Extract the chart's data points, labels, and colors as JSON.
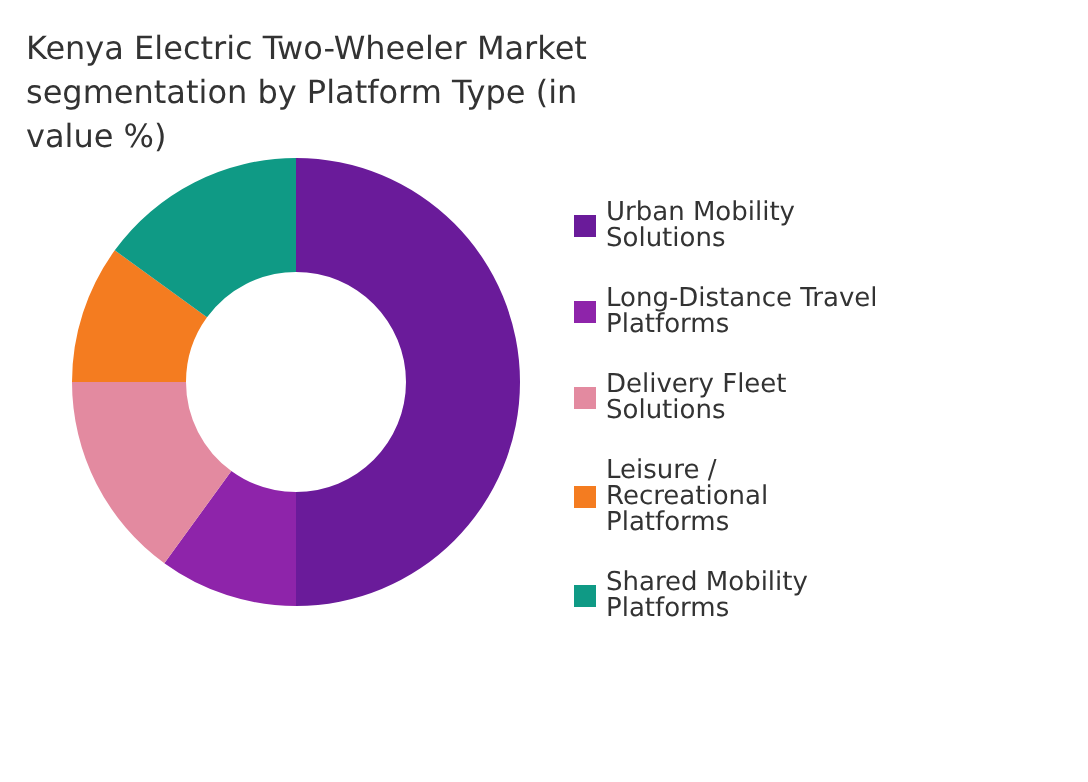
{
  "chart_data": {
    "type": "donut",
    "title": "Kenya Electric Two-Wheeler Market segmentation by Platform Type (in value %)",
    "categories": [
      "Urban Mobility Solutions",
      "Long-Distance Travel Platforms",
      "Delivery Fleet Solutions",
      "Leisure / Recreational Platforms",
      "Shared Mobility Platforms"
    ],
    "values": [
      50,
      10,
      15,
      10,
      15
    ],
    "colors": [
      "#6a1b9a",
      "#8e24aa",
      "#e38aa0",
      "#f47c20",
      "#0f9a85"
    ],
    "legend": "right"
  }
}
